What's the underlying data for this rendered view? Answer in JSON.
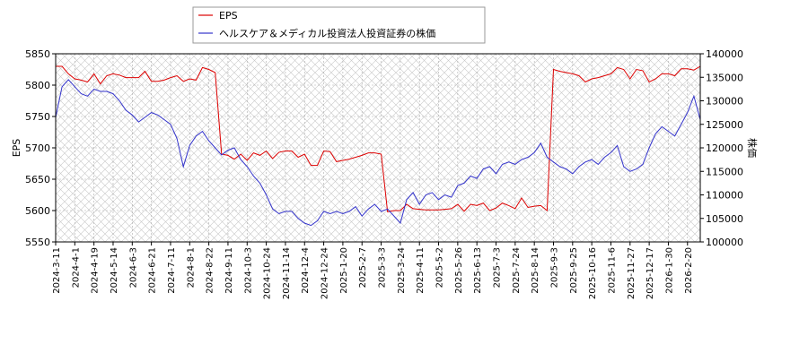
{
  "chart_data": {
    "type": "line",
    "categories": [
      "2024-3-11",
      null,
      null,
      "2024-4-1",
      null,
      null,
      "2024-4-19",
      null,
      null,
      "2024-5-14",
      null,
      null,
      "2024-6-3",
      null,
      null,
      "2024-6-21",
      null,
      null,
      "2024-7-11",
      null,
      null,
      "2024-8-1",
      null,
      null,
      "2024-8-22",
      null,
      null,
      "2024-9-11",
      null,
      null,
      "2024-10-3",
      null,
      null,
      "2024-10-24",
      null,
      null,
      "2024-11-14",
      null,
      null,
      "2024-12-4",
      null,
      null,
      "2024-12-24",
      null,
      null,
      "2025-1-20",
      null,
      null,
      "2025-2-7",
      null,
      null,
      "2025-3-3",
      null,
      null,
      "2025-3-24",
      null,
      null,
      "2025-4-11",
      null,
      null,
      "2025-5-2",
      null,
      null,
      "2025-5-26",
      null,
      null,
      "2025-6-13",
      null,
      null,
      "2025-7-3",
      null,
      null,
      "2025-7-24",
      null,
      null,
      "2025-8-14",
      null,
      null,
      "2025-9-3",
      null,
      null,
      "2025-9-25",
      null,
      null,
      "2025-10-16",
      null,
      null,
      "2025-11-6",
      null,
      null,
      "2025-11-27",
      null,
      null,
      "2025-12-17",
      null,
      null,
      "2026-1-30",
      null,
      null,
      "2026-2-20",
      null,
      null
    ],
    "series": [
      {
        "name": "EPS",
        "color": "#dd0000",
        "axis": "y",
        "values": [
          5830,
          5830,
          5818,
          5810,
          5808,
          5805,
          5818,
          5802,
          5815,
          5818,
          5816,
          5812,
          5812,
          5812,
          5822,
          5806,
          5806,
          5808,
          5812,
          5815,
          5806,
          5810,
          5808,
          5828,
          5825,
          5820,
          5690,
          5688,
          5682,
          5690,
          5680,
          5692,
          5688,
          5695,
          5683,
          5693,
          5695,
          5695,
          5685,
          5690,
          5672,
          5672,
          5695,
          5694,
          5678,
          5680,
          5682,
          5685,
          5688,
          5692,
          5692,
          5690,
          5598,
          5600,
          5600,
          5610,
          5603,
          5602,
          5601,
          5601,
          5601,
          5602,
          5603,
          5610,
          5599,
          5610,
          5608,
          5612,
          5600,
          5604,
          5612,
          5608,
          5603,
          5620,
          5605,
          5607,
          5608,
          5600,
          5825,
          5822,
          5820,
          5818,
          5815,
          5805,
          5810,
          5812,
          5815,
          5818,
          5828,
          5825,
          5810,
          5825,
          5823,
          5805,
          5810,
          5818,
          5818,
          5815,
          5826,
          5826,
          5824,
          5830
        ]
      },
      {
        "name": "ヘルスケア＆メディカル投資法人投資証券の株価",
        "color": "#3333cc",
        "axis": "y2",
        "values": [
          126500,
          133000,
          134500,
          133000,
          131500,
          131000,
          132500,
          132000,
          132000,
          131500,
          130000,
          128000,
          127000,
          125500,
          126500,
          127500,
          127000,
          126000,
          125000,
          122000,
          116000,
          120500,
          122500,
          123500,
          121500,
          120000,
          118500,
          119500,
          120000,
          117500,
          116000,
          114000,
          112500,
          110000,
          107000,
          106000,
          106500,
          106500,
          105000,
          104000,
          103500,
          104500,
          106500,
          106000,
          106500,
          106000,
          106500,
          107500,
          105500,
          107000,
          108000,
          106500,
          107000,
          105500,
          104000,
          109000,
          110500,
          108000,
          110000,
          110500,
          109000,
          110000,
          109500,
          112000,
          112500,
          114000,
          113500,
          115500,
          116000,
          114500,
          116500,
          117000,
          116500,
          117500,
          118000,
          119000,
          121000,
          118000,
          117000,
          116000,
          115500,
          114500,
          116000,
          117000,
          117500,
          116500,
          118000,
          119000,
          120500,
          116000,
          115000,
          115500,
          116500,
          120000,
          123000,
          124500,
          123500,
          122500,
          125000,
          127500,
          131000,
          126000
        ]
      }
    ],
    "ylabel": "EPS",
    "y2label": "株価",
    "ylim": [
      5550,
      5850
    ],
    "yticks": [
      5550,
      5600,
      5650,
      5700,
      5750,
      5800,
      5850
    ],
    "y2lim": [
      100000,
      140000
    ],
    "y2ticks": [
      100000,
      105000,
      110000,
      115000,
      120000,
      125000,
      130000,
      135000,
      140000
    ],
    "grid": true,
    "legend": "top"
  }
}
